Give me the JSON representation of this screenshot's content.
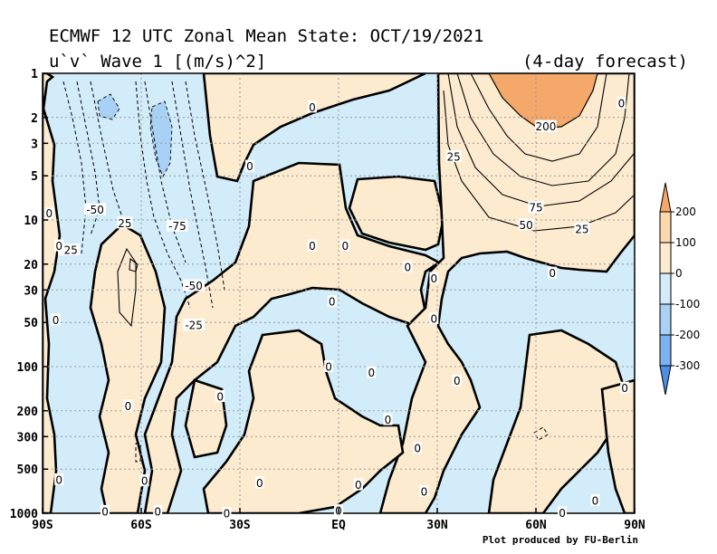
{
  "chart_data": {
    "type": "heatmap",
    "title": "ECMWF 12 UTC Zonal Mean State: OCT/19/2021",
    "subtitle": "u`v` Wave 1 [(m/s)^2]",
    "forecast_note": "(4-day forecast)",
    "credit": "Plot produced by FU-Berlin",
    "x_ticks": [
      "90S",
      "60S",
      "30S",
      "EQ",
      "30N",
      "60N",
      "90N"
    ],
    "x_tick_values": [
      -90,
      -60,
      -30,
      0,
      30,
      60,
      90
    ],
    "xlim": [
      -90,
      90
    ],
    "y_ticks": [
      "1",
      "2",
      "3",
      "5",
      "10",
      "20",
      "30",
      "50",
      "100",
      "200",
      "300",
      "500",
      "1000"
    ],
    "y_tick_values": [
      1,
      2,
      3,
      5,
      10,
      20,
      30,
      50,
      100,
      200,
      300,
      500,
      1000
    ],
    "ylim": [
      1000,
      1
    ],
    "y_scale": "log",
    "grid": true,
    "contour_labels": [
      {
        "text": "0",
        "lat": -8,
        "p": 1.7
      },
      {
        "text": "0",
        "lat": -27,
        "p": 4.3
      },
      {
        "text": "-50",
        "lat": -74,
        "p": 8.5
      },
      {
        "text": "-75",
        "lat": -49,
        "p": 11
      },
      {
        "text": "25",
        "lat": -65,
        "p": 10.5
      },
      {
        "text": "-25",
        "lat": -82,
        "p": 16
      },
      {
        "text": "0",
        "lat": -88,
        "p": 9
      },
      {
        "text": "0",
        "lat": -85,
        "p": 15
      },
      {
        "text": "-50",
        "lat": -44,
        "p": 28
      },
      {
        "text": "-25",
        "lat": -44,
        "p": 52
      },
      {
        "text": "0",
        "lat": -86,
        "p": 48
      },
      {
        "text": "0",
        "lat": -8,
        "p": 15
      },
      {
        "text": "0",
        "lat": 2,
        "p": 15
      },
      {
        "text": "0",
        "lat": -2,
        "p": 36
      },
      {
        "text": "0",
        "lat": 21,
        "p": 21
      },
      {
        "text": "0",
        "lat": 29,
        "p": 25
      },
      {
        "text": "0",
        "lat": 29,
        "p": 47
      },
      {
        "text": "0",
        "lat": -3,
        "p": 100
      },
      {
        "text": "0",
        "lat": 10,
        "p": 110
      },
      {
        "text": "0",
        "lat": 36,
        "p": 125
      },
      {
        "text": "0",
        "lat": -64,
        "p": 185
      },
      {
        "text": "0",
        "lat": -36,
        "p": 160
      },
      {
        "text": "0",
        "lat": 15,
        "p": 230
      },
      {
        "text": "0",
        "lat": 24,
        "p": 360
      },
      {
        "text": "0",
        "lat": -85,
        "p": 590
      },
      {
        "text": "0",
        "lat": -59,
        "p": 600
      },
      {
        "text": "0",
        "lat": -24,
        "p": 620
      },
      {
        "text": "0",
        "lat": 6,
        "p": 640
      },
      {
        "text": "0",
        "lat": 26,
        "p": 710
      },
      {
        "text": "0",
        "lat": -71,
        "p": 970
      },
      {
        "text": "0",
        "lat": -55,
        "p": 970
      },
      {
        "text": "0",
        "lat": -34,
        "p": 1000
      },
      {
        "text": "0",
        "lat": 0,
        "p": 960
      },
      {
        "text": "0",
        "lat": 68,
        "p": 990
      },
      {
        "text": "0",
        "lat": 78,
        "p": 820
      },
      {
        "text": "0",
        "lat": 87,
        "p": 140
      },
      {
        "text": "0",
        "lat": 65,
        "p": 23
      },
      {
        "text": "0",
        "lat": 86,
        "p": 1.6
      },
      {
        "text": "200",
        "lat": 63,
        "p": 2.3
      },
      {
        "text": "25",
        "lat": 35,
        "p": 3.7
      },
      {
        "text": "75",
        "lat": 60,
        "p": 8.2
      },
      {
        "text": "50",
        "lat": 57,
        "p": 10.8
      },
      {
        "text": "25",
        "lat": 74,
        "p": 11.5
      }
    ],
    "colorbar": {
      "levels": [
        "200",
        "100",
        "0",
        "-100",
        "-200",
        "-300"
      ],
      "colors": [
        "#f4a869",
        "#fbd8ad",
        "#fdebd0",
        "#d2ecfa",
        "#a9d0f5",
        "#7cb2ef",
        "#4e8fe6"
      ]
    }
  },
  "colors": {
    "positive_fill": "#fdebd0",
    "negative_fill": "#d2ecfa",
    "strong_positive_fill": "#f4a869",
    "strong_negative_fill": "#a9d0f5"
  }
}
